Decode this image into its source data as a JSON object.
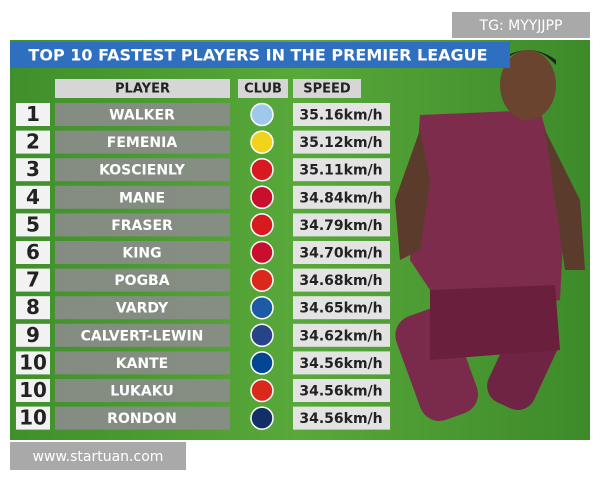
{
  "watermark_top": "TG: MYYJJPP",
  "watermark_bottom": "www.startuan.com",
  "header": {
    "title": "TOP 10 FASTEST PLAYERS IN THE PREMIER LEAGUE"
  },
  "table": {
    "columns": [
      "PLAYER",
      "CLUB",
      "SPEED"
    ],
    "rows": [
      [
        "1",
        "WALKER",
        "35.16km/h"
      ],
      [
        "2",
        "FEMENIA",
        "35.12km/h"
      ],
      [
        "3",
        "KOSCIENLY",
        "35.11km/h"
      ],
      [
        "4",
        "MANE",
        "34.84km/h"
      ],
      [
        "5",
        "FRASER",
        "34.79km/h"
      ],
      [
        "6",
        "KING",
        "34.70km/h"
      ],
      [
        "7",
        "POGBA",
        "34.68km/h"
      ],
      [
        "8",
        "VARDY",
        "34.65km/h"
      ],
      [
        "9",
        "CALVERT-LEWIN",
        "34.62km/h"
      ],
      [
        "10",
        "KANTE",
        "34.56km/h"
      ],
      [
        "10",
        "LUKAKU",
        "34.56km/h"
      ],
      [
        "10",
        "RONDON",
        "34.56km/h"
      ]
    ]
  }
}
